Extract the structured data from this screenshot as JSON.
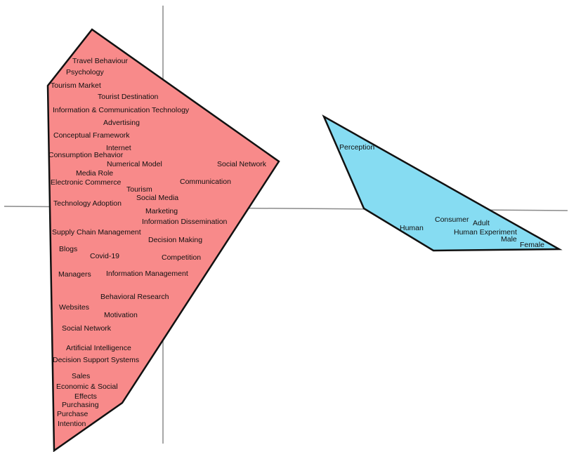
{
  "colors": {
    "cluster_red": "#f88a8a",
    "cluster_blue": "#86dcf2",
    "outline": "#111111",
    "axis": "#8a8a8a"
  },
  "clusters": [
    {
      "id": "red",
      "keywords": [
        "Travel Behaviour",
        "Psychology",
        "Tourism Market",
        "Tourist Destination",
        "Information & Communication Technology",
        "Advertising",
        "Conceptual Framework",
        "Internet",
        "Consumption Behavior",
        "Numerical Model",
        "Social Network",
        "Media Role",
        "Electronic Commerce",
        "Communication",
        "Tourism",
        "Social Media",
        "Technology Adoption",
        "Marketing",
        "Information Dissemination",
        "Supply Chain Management",
        "Decision Making",
        "Blogs",
        "Covid-19",
        "Competition",
        "Managers",
        "Information Management",
        "Behavioral Research",
        "Websites",
        "Motivation",
        "Social Network",
        "Artificial Intelligence",
        "Decision Support Systems",
        "Sales",
        "Economic & Social",
        "Effects",
        "Purchasing",
        "Purchase",
        "Intention"
      ]
    },
    {
      "id": "blue",
      "keywords": [
        "Perception",
        "Human",
        "Consumer",
        "Adult",
        "Human Experiment",
        "Male",
        "Female"
      ]
    }
  ]
}
